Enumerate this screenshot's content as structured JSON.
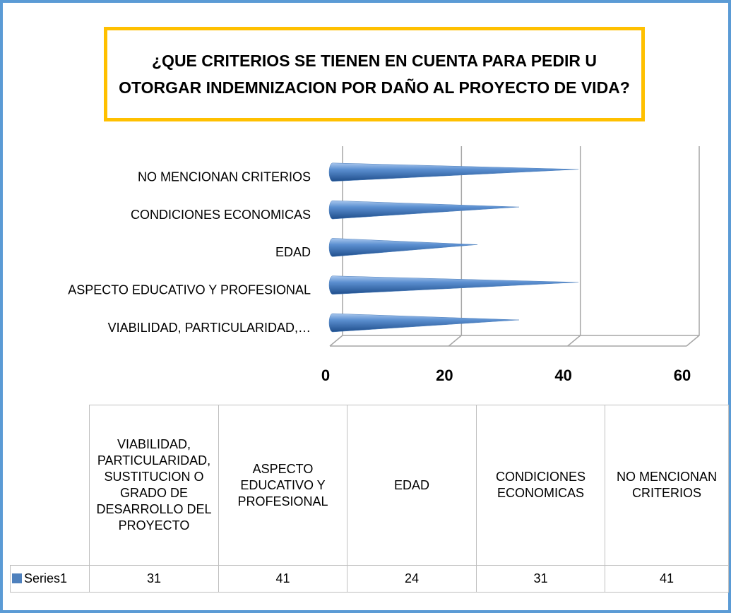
{
  "chart_data": {
    "type": "cone-bar",
    "title": "¿QUE CRITERIOS SE TIENEN EN CUENTA PARA PEDIR U OTORGAR INDEMNIZACION POR DAÑO AL PROYECTO DE VIDA?",
    "categories": [
      "VIABILIDAD, PARTICULARIDAD, SUSTITUCION O GRADO DE DESARROLLO DEL PROYECTO",
      "ASPECTO EDUCATIVO Y PROFESIONAL",
      "EDAD",
      "CONDICIONES ECONOMICAS",
      "NO MENCIONAN CRITERIOS"
    ],
    "category_axis_labels": [
      "VIABILIDAD, PARTICULARIDAD,…",
      "ASPECTO EDUCATIVO Y PROFESIONAL",
      "EDAD",
      "CONDICIONES ECONOMICAS",
      "NO MENCIONAN CRITERIOS"
    ],
    "series": [
      {
        "name": "Series1",
        "color": "#4f81bd",
        "values": [
          31,
          41,
          24,
          31,
          41
        ]
      }
    ],
    "xlim": [
      0,
      60
    ],
    "xticks": [
      0,
      20,
      40,
      60
    ],
    "grid": true
  }
}
